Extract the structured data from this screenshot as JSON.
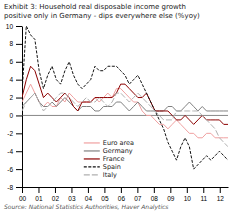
{
  "chart_data": {
    "type": "line",
    "title": "Exhibit 3: Household real disposable income growth\npositive only in Germany - dips everywhere else (%yoy)",
    "source": "Source: National Statistics Authorities, Haver Analytics",
    "x": [
      0,
      0.2604166666666667,
      0.5208333333333334,
      0.78125,
      1.0416666666666667,
      1.3020833333333333,
      1.5625,
      1.8229166666666667,
      2.0833333333333335,
      2.34375,
      2.604166666666667,
      2.8645833333333335,
      3.125,
      3.385416666666667,
      3.6458333333333335,
      3.90625,
      4.166666666666667,
      4.427083333333333,
      4.6875,
      4.947916666666667,
      5.208333333333333,
      5.46875,
      5.729166666666667,
      5.989583333333333,
      6.25,
      6.510416666666667,
      6.770833333333333,
      7.03125,
      7.291666666666667,
      7.552083333333333,
      7.8125,
      8.072916666666666,
      8.333333333333334,
      8.59375,
      8.854166666666666,
      9.114583333333334,
      9.375,
      9.635416666666666,
      9.895833333333334,
      10.15625,
      10.416666666666666,
      10.677083333333334,
      10.9375,
      11.197916666666666,
      11.458333333333334,
      11.71875,
      11.979166666666666,
      12.239583333333334,
      12.5
    ],
    "xlim": [
      0,
      12.5
    ],
    "xticks": [
      {
        "value": 0,
        "label": "00"
      },
      {
        "value": 1,
        "label": "01"
      },
      {
        "value": 2,
        "label": "02"
      },
      {
        "value": 3,
        "label": "03"
      },
      {
        "value": 4,
        "label": "04"
      },
      {
        "value": 5,
        "label": "05"
      },
      {
        "value": 6,
        "label": "06"
      },
      {
        "value": 7,
        "label": "07"
      },
      {
        "value": 8,
        "label": "08"
      },
      {
        "value": 9,
        "label": "09"
      },
      {
        "value": 10,
        "label": "10"
      },
      {
        "value": 11,
        "label": "11"
      },
      {
        "value": 12,
        "label": "12"
      }
    ],
    "ylim": [
      -8,
      10
    ],
    "yticks": [
      -8,
      -6,
      -4,
      -2,
      0,
      2,
      4,
      6,
      8,
      10
    ],
    "legend": "lower left",
    "series": [
      {
        "name": "Euro area",
        "color": "#f0a0a0",
        "line_style": "solid",
        "values": [
          1.5,
          2.5,
          3.5,
          2.5,
          1.5,
          1.0,
          1.5,
          1.0,
          1.0,
          2.0,
          1.5,
          2.5,
          2.0,
          1.5,
          1.5,
          1.5,
          1.5,
          2.0,
          1.5,
          2.0,
          2.5,
          2.0,
          3.0,
          3.0,
          2.5,
          2.0,
          1.5,
          1.5,
          0.5,
          0.0,
          0.0,
          -0.5,
          -1.0,
          -1.0,
          -1.5,
          -1.0,
          -0.5,
          -1.0,
          -1.5,
          -2.0,
          -2.0,
          -2.5,
          -2.5,
          -2.0,
          -2.0,
          -2.5,
          -2.5,
          -2.5,
          -2.5
        ]
      },
      {
        "name": "Germany",
        "color": "#808080",
        "line_style": "solid",
        "values": [
          1.0,
          1.5,
          2.0,
          2.5,
          1.5,
          1.0,
          1.0,
          1.5,
          1.0,
          1.5,
          2.0,
          1.5,
          1.0,
          0.5,
          1.0,
          1.0,
          1.0,
          0.5,
          0.5,
          1.0,
          1.0,
          1.0,
          1.5,
          1.5,
          1.0,
          0.5,
          1.0,
          1.5,
          1.0,
          0.5,
          0.5,
          0.5,
          0.5,
          0.5,
          1.0,
          1.0,
          0.5,
          0.5,
          1.0,
          1.5,
          1.0,
          0.5,
          1.0,
          0.5,
          0.5,
          0.5,
          0.5,
          0.5,
          0.5
        ]
      },
      {
        "name": "France",
        "color": "#8b0000",
        "line_style": "solid",
        "values": [
          2.0,
          4.0,
          5.5,
          5.0,
          3.5,
          2.0,
          2.5,
          2.0,
          1.5,
          2.0,
          2.5,
          2.0,
          1.0,
          0.5,
          1.5,
          1.5,
          1.5,
          2.0,
          2.0,
          2.0,
          2.0,
          2.0,
          2.5,
          3.5,
          3.5,
          3.0,
          2.5,
          2.0,
          2.0,
          2.5,
          1.5,
          0.5,
          0.5,
          0.5,
          0.5,
          0.0,
          -0.5,
          -0.5,
          0.0,
          -0.5,
          -1.0,
          -0.5,
          0.0,
          -0.5,
          -0.5,
          -0.5,
          -0.5,
          -1.0,
          -1.0
        ]
      },
      {
        "name": "Spain",
        "color": "#111111",
        "line_style": "dashed",
        "values": [
          2.5,
          10.0,
          9.0,
          8.5,
          5.0,
          3.0,
          4.5,
          5.5,
          4.0,
          3.5,
          5.0,
          6.0,
          4.5,
          3.5,
          3.0,
          3.5,
          4.0,
          5.5,
          5.0,
          5.0,
          5.5,
          5.5,
          5.5,
          5.0,
          4.5,
          3.5,
          4.0,
          4.5,
          3.5,
          2.5,
          1.5,
          0.5,
          -0.5,
          -1.5,
          -3.0,
          -4.0,
          -5.0,
          -3.5,
          -2.5,
          -3.5,
          -6.0,
          -5.5,
          -5.0,
          -4.5,
          -5.0,
          -4.5,
          -4.0,
          -4.5,
          -5.0
        ]
      },
      {
        "name": "Italy",
        "color": "#b0b0b0",
        "line_style": "longdash",
        "values": [
          0.5,
          1.5,
          2.0,
          2.5,
          1.5,
          0.5,
          1.0,
          1.5,
          2.0,
          2.5,
          2.5,
          2.0,
          1.5,
          1.0,
          1.5,
          2.0,
          1.5,
          1.5,
          2.0,
          1.5,
          1.0,
          1.5,
          2.5,
          2.5,
          2.0,
          1.5,
          2.0,
          2.5,
          2.0,
          1.5,
          1.0,
          0.5,
          0.0,
          -0.5,
          -0.5,
          -0.5,
          0.5,
          0.5,
          0.5,
          0.5,
          0.5,
          0.5,
          0.0,
          -0.5,
          -1.0,
          -1.5,
          -2.5,
          -3.0,
          -3.5
        ]
      }
    ]
  }
}
